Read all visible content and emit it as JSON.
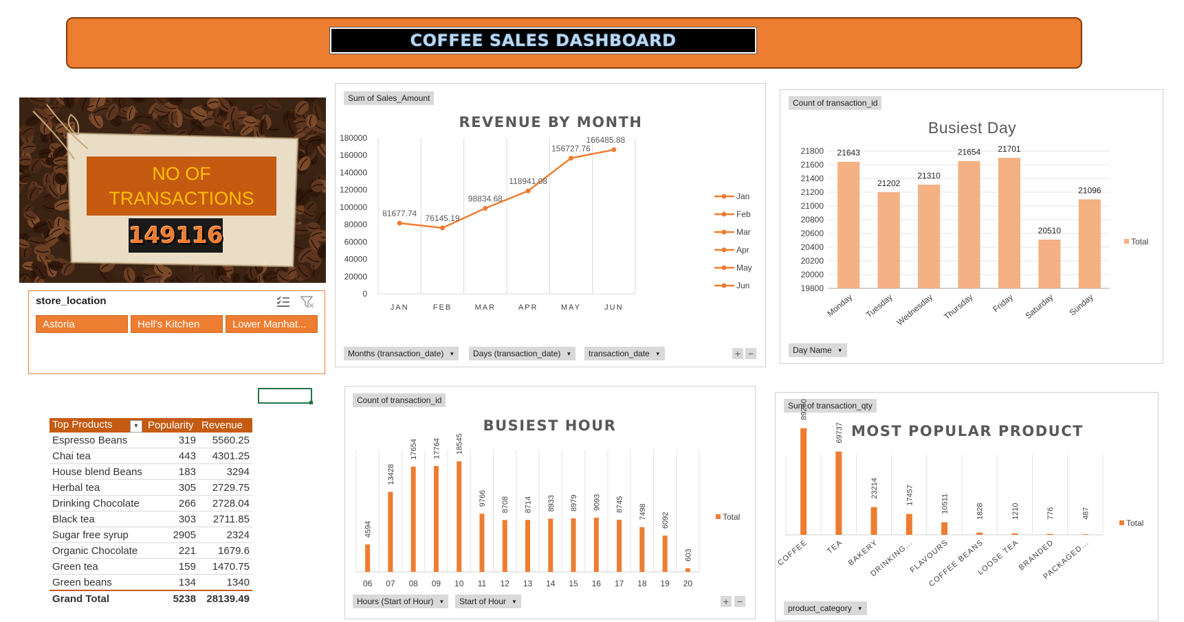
{
  "dashboard": {
    "title": "COFFEE SALES DASHBOARD",
    "kpi_label": "NO OF TRANSACTIONS",
    "kpi_value": "149116"
  },
  "slicer": {
    "title": "store_location",
    "items": [
      "Astoria",
      "Hell's Kitchen",
      "Lower Manhat..."
    ]
  },
  "top_products": {
    "headers": [
      "Top Products",
      "Popularity",
      "Revenue"
    ],
    "rows": [
      {
        "name": "Espresso Beans",
        "popularity": "319",
        "revenue": "5560.25"
      },
      {
        "name": "Chai tea",
        "popularity": "443",
        "revenue": "4301.25"
      },
      {
        "name": "House blend Beans",
        "popularity": "183",
        "revenue": "3294"
      },
      {
        "name": "Herbal tea",
        "popularity": "305",
        "revenue": "2729.75"
      },
      {
        "name": "Drinking Chocolate",
        "popularity": "266",
        "revenue": "2728.04"
      },
      {
        "name": "Black tea",
        "popularity": "303",
        "revenue": "2711.85"
      },
      {
        "name": "Sugar free syrup",
        "popularity": "2905",
        "revenue": "2324"
      },
      {
        "name": "Organic Chocolate",
        "popularity": "221",
        "revenue": "1679.6"
      },
      {
        "name": "Green tea",
        "popularity": "159",
        "revenue": "1470.75"
      },
      {
        "name": "Green beans",
        "popularity": "134",
        "revenue": "1340"
      }
    ],
    "total": {
      "name": "Grand Total",
      "popularity": "5238",
      "revenue": "28139.49"
    }
  },
  "chart_data": [
    {
      "type": "line",
      "title": "REVENUE BY MONTH",
      "field_button": "Sum of Sales_Amount",
      "categories": [
        "JAN",
        "FEB",
        "MAR",
        "APR",
        "MAY",
        "JUN"
      ],
      "values": [
        81677.74,
        76145.19,
        98834.68,
        118941.08,
        156727.76,
        166485.88
      ],
      "value_labels": [
        "81677.74",
        "76145.19",
        "98834.68",
        "118941.08",
        "156727.76",
        "166485.88"
      ],
      "ylim": [
        0,
        180000
      ],
      "yticks": [
        "180000",
        "160000",
        "140000",
        "120000",
        "100000",
        "80000",
        "60000",
        "40000",
        "20000",
        "0"
      ],
      "legend": [
        "Jan",
        "Feb",
        "Mar",
        "Apr",
        "May",
        "Jun"
      ],
      "legend_position": "right",
      "axis_buttons": [
        "Months (transaction_date)",
        "Days (transaction_date)",
        "transaction_date"
      ],
      "color": "#ed7d31",
      "grid": "vertical"
    },
    {
      "type": "bar",
      "title": "Busiest Day",
      "field_button": "Count of transaction_id",
      "categories": [
        "Monday",
        "Tuesday",
        "Wednesday",
        "Thursday",
        "Friday",
        "Saturday",
        "Sunday"
      ],
      "values": [
        21643,
        21202,
        21310,
        21654,
        21701,
        20510,
        21096
      ],
      "ylim": [
        19800,
        21800
      ],
      "yticks": [
        "21800",
        "21600",
        "21400",
        "21200",
        "21000",
        "20800",
        "20600",
        "20400",
        "20200",
        "20000",
        "19800"
      ],
      "legend": [
        "Total"
      ],
      "legend_position": "right",
      "axis_buttons": [
        "Day Name"
      ],
      "color": "#f4b183",
      "grid": "horizontal"
    },
    {
      "type": "bar",
      "title": "BUSIEST HOUR",
      "field_button": "Count of transaction_id",
      "categories": [
        "06",
        "07",
        "08",
        "09",
        "10",
        "11",
        "12",
        "13",
        "14",
        "15",
        "16",
        "17",
        "18",
        "19",
        "20"
      ],
      "values": [
        4594,
        13428,
        17654,
        17764,
        18545,
        9766,
        8708,
        8714,
        8933,
        8979,
        9093,
        8745,
        7498,
        6092,
        603
      ],
      "ylim": [
        0,
        20500
      ],
      "legend": [
        "Total"
      ],
      "legend_position": "right",
      "axis_buttons": [
        "Hours (Start of Hour)",
        "Start of Hour"
      ],
      "color": "#ed7d31",
      "grid": "vertical"
    },
    {
      "type": "bar",
      "title": "MOST POPULAR PRODUCT",
      "field_button": "Sum of transaction_qty",
      "categories": [
        "COFFEE",
        "TEA",
        "BAKERY",
        "DRINKING...",
        "FLAVOURS",
        "COFFEE BEANS",
        "LOOSE TEA",
        "BRANDED",
        "PACKAGED..."
      ],
      "values": [
        89250,
        69737,
        23214,
        17457,
        10511,
        1828,
        1210,
        776,
        487
      ],
      "ylim": [
        0,
        100000
      ],
      "legend": [
        "Total"
      ],
      "legend_position": "right",
      "axis_buttons": [
        "product_category"
      ],
      "color": "#ed7d31",
      "grid": "vertical"
    }
  ]
}
